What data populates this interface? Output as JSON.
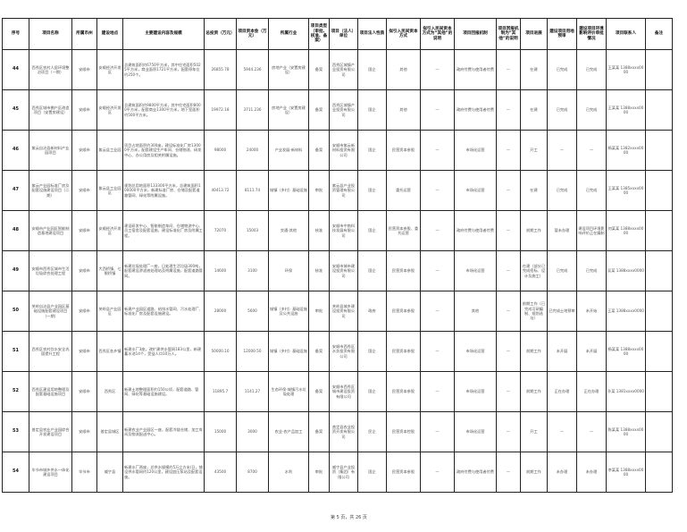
{
  "headers": [
    "序号",
    "项目名称",
    "所属市州",
    "建设地点",
    "主要建设内容及规模",
    "总投资（万元）",
    "项目资本金（万元）",
    "所属行业",
    "项目类型（审批、核准、备案）",
    "项目（法人）单位",
    "项目法人性质",
    "拟引入民间资本方式",
    "拟引入民间资本方式为“其他”的说明",
    "项目回报机制",
    "项目回报机制为“其他”的说明",
    "项目进展",
    "建设项目用地预审",
    "建设项目环境影响评价审批情况",
    "项目联系人",
    "备注"
  ],
  "rows": [
    [
      "44",
      "西秀区农村人居环境整治项目（一期）",
      "安顺市",
      "安顺经济开发区",
      "总建筑面积约6750平方米，其中住宅面积5025平方米，商业面积1721平方米，配套停车位约250个。",
      "26855.78",
      "5944.236",
      "房地产业（安置房建设）",
      "备案",
      "西秀区城镇产业投资有限公司",
      "国企",
      "其他",
      "—",
      "政府付费与使用者付费",
      "—",
      "在建",
      "已完成",
      "已完成",
      "王某某 1388xxxx0000",
      ""
    ],
    [
      "45",
      "西秀区城市棚户区改造项目（安置房建设）",
      "安顺市",
      "安顺经济开发区",
      "总建筑面积约9800平方米，其中住宅面积8000平方米，配套商业1300平方米，地下室面积约500平方米。",
      "19972.18",
      "3711.236",
      "房地产业（安置房建设）",
      "备案",
      "西秀区城镇产业投资有限公司",
      "国企",
      "其他",
      "—",
      "政府付费与使用者付费",
      "—",
      "在建",
      "已完成",
      "已完成",
      "王某某 1388xxxx0000",
      ""
    ],
    [
      "46",
      "紫云自治县新材料产业园项目",
      "安顺市",
      "紫云县工业园",
      "项目占地面积约300亩，建设标准化厂房13000平方米，配套建设生产车间、仓储物流、研发中心、办公用房及相关附属设施。",
      "98000",
      "24000",
      "产业发展-新材料",
      "备案",
      "安顺市紫云新材料投资有限公司",
      "国企",
      "民营资本参股",
      "—",
      "市场化运营",
      "—",
      "开工",
      "—",
      "—",
      "杨某某 1382xxxx0000",
      ""
    ],
    [
      "47",
      "紫云产业园标准厂房及配套设施建设项目（二期）",
      "安顺市",
      "紫云县工业园区",
      "规划总用地面积133300平方米，总建筑面积100000平方米，新建标准厂房、仓储及配套道路管网、绿化等附属设施。",
      "40413.72",
      "8111.74",
      "城镇（乡村）基础设施",
      "审批",
      "紫云县产业投资管理有限公司",
      "国企",
      "委托运营",
      "—",
      "市场化运营",
      "—",
      "在建",
      "已完成",
      "已完成",
      "王某某 1385xxxx0000",
      ""
    ],
    [
      "48",
      "安顺市产业园区智能制造基地建设项目",
      "安顺市",
      "安顺经济开发区",
      "建设研发中心、智能制造车间、仓储物流中心、员工宿舍及配套设施，建设标准化厂房及附属工程。",
      "72070",
      "15003",
      "交通-其他",
      "核准",
      "安顺市中南科技发展有限公司",
      "国企",
      "民营资本参股、委托运营",
      "—",
      "政府付费与使用者付费",
      "—",
      "前期工作",
      "暂未办理",
      "建设项目环境影响评价正在编制",
      "何某某 1388xxxx0000",
      ""
    ],
    [
      "49",
      "安顺市西秀区城市生活垃圾综合处理工程",
      "安顺市",
      "大西桥镇、七眼桥镇",
      "新建垃圾处理厂一座，日处理生活垃圾300吨，配套建设渗滤液处理站及附属设施，配套道路管网。",
      "14600",
      "3100",
      "环保",
      "核准",
      "安顺市城市建设投资有限公司",
      "国企",
      "民营资本参股",
      "—",
      "市场化运营",
      "—",
      "在建（部分已完成招标、设计及施工）",
      "已完成",
      "已完成",
      "吴某 1388xxxx0000",
      ""
    ],
    [
      "50",
      "关岭自治县产业园区基础设施配套建设项目（一期）",
      "安顺市",
      "关岭县产业园区",
      "新建产业园区道路、给排水管网、污水处理厂、标准化厂房及配套设施建设。",
      "28000",
      "5600",
      "城镇（乡村）基础设施及公共设施",
      "审批",
      "关岭县城乡建设投资有限公司",
      "政府",
      "民营资本参股",
      "—",
      "其他",
      "—",
      "前期工作（已完成可研编制、规划选址）",
      "已完成土地预审",
      "未开始",
      "王某 1388xxxx0000",
      ""
    ],
    [
      "51",
      "西秀区农村饮水安全巩固提升工程",
      "安顺市",
      "西秀区各乡镇",
      "新建水厂3座，改扩建供水管网183公里，新建蓄水池14个，受益人口10万人。",
      "50000.10",
      "12000.50",
      "城镇（乡村）基础设施",
      "备案",
      "安顺市西秀区水务投资有限公司",
      "国企",
      "民营资本参股",
      "—",
      "市场化运营",
      "—",
      "前期工作",
      "未开展",
      "未开展",
      "杨某某 1388xxxx0000",
      ""
    ],
    [
      "52",
      "西秀区建设用地整理及配套基础设施项目",
      "安顺市",
      "西秀区",
      "新建土地整理面积约150公顷，配套道路、管网、绿化等基础设施建设。",
      "11895.7",
      "1141.27",
      "生态环保-城镇污水垃圾处理",
      "备案",
      "安顺市西秀区城市建设投资有限公司",
      "国企",
      "民营资本参股",
      "—",
      "市场化运营",
      "—",
      "前期工作",
      "正在办理",
      "正在办理",
      "孙某 1381xxxx0000",
      ""
    ],
    [
      "53",
      "普定县农业产业园综合开发建设项目",
      "安顺市",
      "普定县城区",
      "新建农业产业园区一座，配套冷链仓储、加工车间及物流配送中心。",
      "15000",
      "3000",
      "农业-农产品加工",
      "备案",
      "普定县农业投资开发有限公司",
      "民企",
      "民营资本控股",
      "—",
      "市场化运营",
      "—",
      "开工",
      "—",
      "—",
      "陈某某 1388xxxx0000",
      ""
    ],
    [
      "54",
      "毕节市城乡供水一体化建设项目",
      "毕节市",
      "威宁县",
      "新建水厂两座，总供水规模约5万立方米/日，铺设供水管网约120公里，建设加压泵站及配套设施。",
      "43500",
      "8700",
      "水利",
      "审批",
      "威宁县产业投资（集团）有限公司",
      "国企",
      "民营资本参股",
      "—",
      "政府付费与使用者付费",
      "—",
      "前期工作",
      "未办理",
      "未办理",
      "李某某 1388xxxx0000",
      ""
    ]
  ],
  "footer": "第 5 页，共 26 页"
}
